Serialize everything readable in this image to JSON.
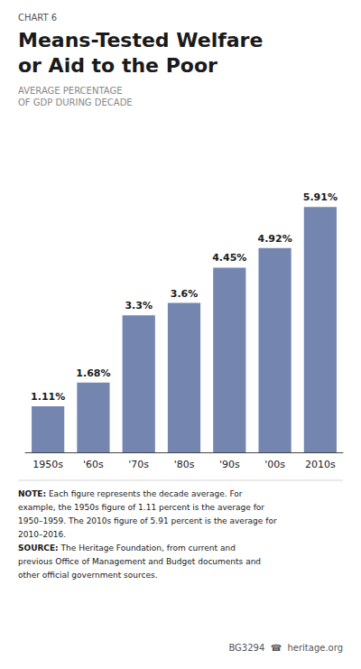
{
  "chart_data": {
    "type": "bar",
    "title": "Means-Tested Welfare\nor Aid to the Poor",
    "subtitle": "AVERAGE PERCENTAGE\nOF GDP DURING DECADE",
    "categories": [
      "1950s",
      "'60s",
      "'70s",
      "'80s",
      "'90s",
      "'00s",
      "2010s"
    ],
    "values": [
      1.11,
      1.68,
      3.3,
      3.6,
      4.45,
      4.92,
      5.91
    ],
    "value_labels": [
      "1.11%",
      "1.68%",
      "3.3%",
      "3.6%",
      "4.45%",
      "4.92%",
      "5.91%"
    ],
    "data_labels": true,
    "color": "#7485b0",
    "ylim": [
      0,
      7.2
    ],
    "grid": false,
    "tick_labels": "x",
    "annotations": [
      "CHART 6",
      "NOTE: Each figure represents the decade average. For",
      "example, the 1950s figure of 1.11 percent is the average for",
      "1950–1959. The 2010s figure of 5.91 percent is the average for",
      "2010–2016.",
      "SOURCE: The Heritage Foundation, from current and",
      "previous Office of Management and Budget documents and",
      "other official government sources.",
      "BG3294  ☎  heritage.org"
    ]
  }
}
